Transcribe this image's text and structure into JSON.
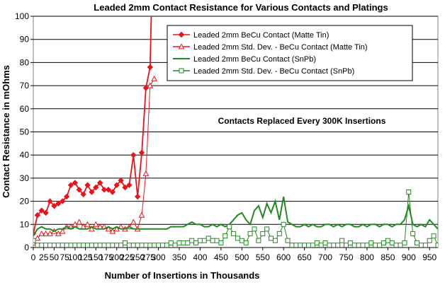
{
  "chart_data": {
    "type": "line",
    "title": "Leaded 2mm Contact Resistance for Various Contacts and Platings",
    "xlabel": "Number of Insertions in Thousands",
    "ylabel": "Contact Resistance in mOhms",
    "xlim": [
      0,
      970
    ],
    "ylim": [
      0,
      100
    ],
    "xticks": [
      0,
      25,
      50,
      75,
      100,
      125,
      150,
      175,
      200,
      225,
      250,
      275,
      300,
      350,
      400,
      450,
      500,
      550,
      600,
      650,
      700,
      750,
      800,
      850,
      900,
      950
    ],
    "yticks": [
      0,
      10,
      20,
      30,
      40,
      50,
      60,
      70,
      80,
      90,
      100
    ],
    "annotation": "Contacts Replaced Every 300K Insertions",
    "legend_position": "top-right",
    "series": [
      {
        "name": "Leaded 2mm BeCu Contact (Matte Tin)",
        "color": "#e8141c",
        "marker": "diamond",
        "x": [
          0,
          10,
          20,
          30,
          40,
          50,
          60,
          70,
          80,
          90,
          100,
          110,
          120,
          130,
          140,
          150,
          160,
          170,
          180,
          190,
          200,
          210,
          220,
          230,
          240,
          250,
          260,
          270,
          280
        ],
        "y": [
          6,
          14,
          16,
          15,
          20,
          18,
          19,
          20,
          22,
          27,
          28,
          25,
          23,
          27,
          24,
          26,
          28,
          25,
          25,
          24,
          27,
          29,
          26,
          27,
          40,
          22,
          41,
          69,
          78
        ]
      },
      {
        "name": "Leaded 2mm Std. Dev. - BeCu Contact (Matte Tin)",
        "color": "#e8141c",
        "marker": "triangle-open",
        "x": [
          0,
          10,
          20,
          30,
          40,
          50,
          60,
          70,
          80,
          90,
          100,
          110,
          120,
          130,
          140,
          150,
          160,
          170,
          180,
          190,
          200,
          210,
          220,
          230,
          240,
          250,
          260,
          270,
          280,
          290
        ],
        "y": [
          2,
          4,
          6,
          6,
          6,
          7,
          6,
          7,
          9,
          9,
          10,
          11,
          9,
          10,
          8,
          10,
          9,
          9,
          8,
          7,
          8,
          9,
          8,
          9,
          11,
          8,
          14,
          32,
          70,
          73
        ]
      },
      {
        "name": "Leaded 2mm BeCu Contact (SnPb)",
        "color": "#218a21",
        "marker": "none",
        "x": [
          0,
          10,
          20,
          30,
          40,
          50,
          60,
          70,
          80,
          90,
          100,
          110,
          120,
          130,
          140,
          150,
          160,
          170,
          180,
          190,
          200,
          210,
          220,
          230,
          240,
          250,
          260,
          270,
          280,
          290,
          300,
          310,
          320,
          330,
          340,
          350,
          360,
          370,
          380,
          390,
          400,
          410,
          420,
          430,
          440,
          450,
          460,
          470,
          480,
          490,
          500,
          510,
          520,
          530,
          540,
          550,
          560,
          570,
          580,
          590,
          600,
          610,
          620,
          630,
          640,
          650,
          660,
          670,
          680,
          690,
          700,
          710,
          720,
          730,
          740,
          750,
          760,
          770,
          780,
          790,
          800,
          810,
          820,
          830,
          840,
          850,
          860,
          870,
          880,
          890,
          900,
          910,
          920,
          930,
          940,
          950,
          960,
          970
        ],
        "y": [
          5,
          8,
          9,
          8,
          8,
          7,
          8,
          8,
          9,
          8,
          9,
          8,
          8,
          8,
          9,
          8,
          8,
          8,
          9,
          8,
          9,
          8,
          8,
          9,
          8,
          8,
          8,
          8,
          8,
          8,
          8,
          8,
          8,
          9,
          9,
          9,
          9,
          10,
          11,
          10,
          10,
          9,
          9,
          10,
          9,
          10,
          9,
          10,
          12,
          14,
          15,
          12,
          10,
          16,
          18,
          13,
          19,
          15,
          20,
          12,
          22,
          11,
          10,
          9,
          9,
          10,
          9,
          10,
          9,
          9,
          10,
          10,
          9,
          10,
          9,
          10,
          10,
          9,
          9,
          10,
          9,
          10,
          10,
          9,
          10,
          10,
          9,
          10,
          10,
          12,
          18,
          10,
          9,
          10,
          9,
          12,
          10,
          8
        ]
      },
      {
        "name": "Leaded 2mm Std. Dev. - BeCu Contact (SnPb)",
        "color": "#218a21",
        "marker": "square-open",
        "x": [
          0,
          10,
          20,
          30,
          40,
          50,
          60,
          70,
          80,
          90,
          100,
          110,
          120,
          130,
          140,
          150,
          160,
          170,
          180,
          190,
          200,
          210,
          220,
          230,
          240,
          250,
          260,
          270,
          280,
          290,
          300,
          310,
          320,
          330,
          340,
          350,
          360,
          370,
          380,
          390,
          400,
          410,
          420,
          430,
          440,
          450,
          460,
          470,
          480,
          490,
          500,
          510,
          520,
          530,
          540,
          550,
          560,
          570,
          580,
          590,
          600,
          610,
          620,
          630,
          640,
          650,
          660,
          670,
          680,
          690,
          700,
          710,
          720,
          730,
          740,
          750,
          760,
          770,
          780,
          790,
          800,
          810,
          820,
          830,
          840,
          850,
          860,
          870,
          880,
          890,
          900,
          910,
          920,
          930,
          940,
          950,
          960,
          970
        ],
        "y": [
          3,
          1,
          1,
          1,
          1,
          1,
          1,
          1,
          1,
          1,
          1,
          1,
          1,
          1,
          1,
          1,
          1,
          1,
          1,
          1,
          1,
          1,
          2,
          1,
          1,
          1,
          1,
          1,
          1,
          1,
          1,
          1,
          1,
          2,
          1,
          2,
          2,
          2,
          3,
          2,
          3,
          3,
          4,
          3,
          3,
          2,
          5,
          9,
          6,
          4,
          3,
          2,
          6,
          8,
          3,
          6,
          8,
          4,
          3,
          6,
          10,
          3,
          1,
          1,
          1,
          1,
          1,
          1,
          2,
          1,
          2,
          1,
          1,
          1,
          3,
          1,
          2,
          1,
          1,
          1,
          1,
          2,
          1,
          1,
          2,
          3,
          2,
          1,
          1,
          2,
          24,
          6,
          2,
          1,
          1,
          3,
          5,
          1
        ]
      }
    ]
  }
}
